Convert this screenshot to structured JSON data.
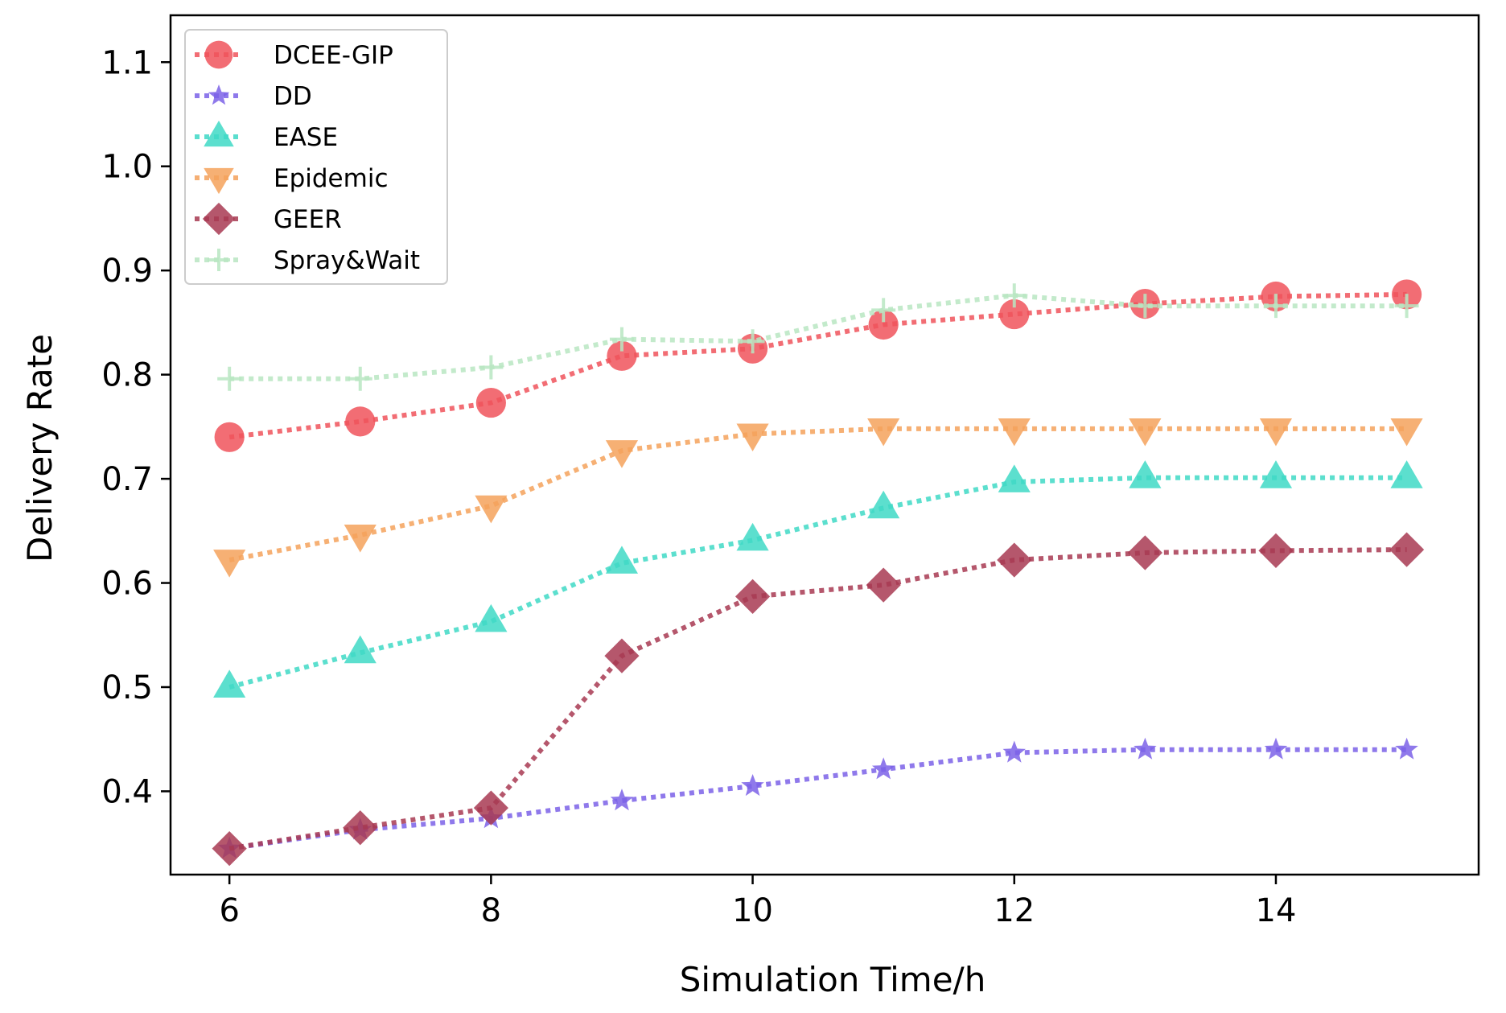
{
  "chart_data": {
    "type": "line",
    "title": "",
    "xlabel": "Simulation Time/h",
    "ylabel": "Delivery Rate",
    "xlim": [
      5.55,
      15.55
    ],
    "ylim": [
      0.32,
      1.145
    ],
    "xticks": [
      6,
      8,
      10,
      12,
      14
    ],
    "yticks": [
      0.4,
      0.5,
      0.6,
      0.7,
      0.8,
      0.9,
      1.0,
      1.1
    ],
    "grid": false,
    "legend_position": "top-left",
    "x": [
      6,
      7,
      8,
      9,
      10,
      11,
      12,
      13,
      14,
      15
    ],
    "series": [
      {
        "name": "DCEE-GIP",
        "color": "#f0545c",
        "marker": "circle",
        "values": [
          0.74,
          0.755,
          0.773,
          0.818,
          0.825,
          0.848,
          0.858,
          0.868,
          0.875,
          0.877
        ]
      },
      {
        "name": "DD",
        "color": "#7b62e8",
        "marker": "star",
        "values": [
          0.345,
          0.363,
          0.374,
          0.391,
          0.405,
          0.421,
          0.437,
          0.44,
          0.44,
          0.44
        ]
      },
      {
        "name": "EASE",
        "color": "#3fd9c6",
        "marker": "triangle-up",
        "values": [
          0.5,
          0.533,
          0.563,
          0.619,
          0.641,
          0.672,
          0.697,
          0.701,
          0.701,
          0.701
        ]
      },
      {
        "name": "Epidemic",
        "color": "#f4a25c",
        "marker": "triangle-down",
        "values": [
          0.622,
          0.646,
          0.674,
          0.727,
          0.743,
          0.748,
          0.748,
          0.748,
          0.748,
          0.748
        ]
      },
      {
        "name": "GEER",
        "color": "#a83a52",
        "marker": "diamond",
        "values": [
          0.345,
          0.365,
          0.384,
          0.53,
          0.587,
          0.598,
          0.622,
          0.629,
          0.631,
          0.632
        ]
      },
      {
        "name": "Spray&Wait",
        "color": "#b9e6c2",
        "marker": "plus",
        "values": [
          0.796,
          0.796,
          0.807,
          0.834,
          0.832,
          0.862,
          0.876,
          0.866,
          0.866,
          0.866
        ]
      }
    ]
  }
}
